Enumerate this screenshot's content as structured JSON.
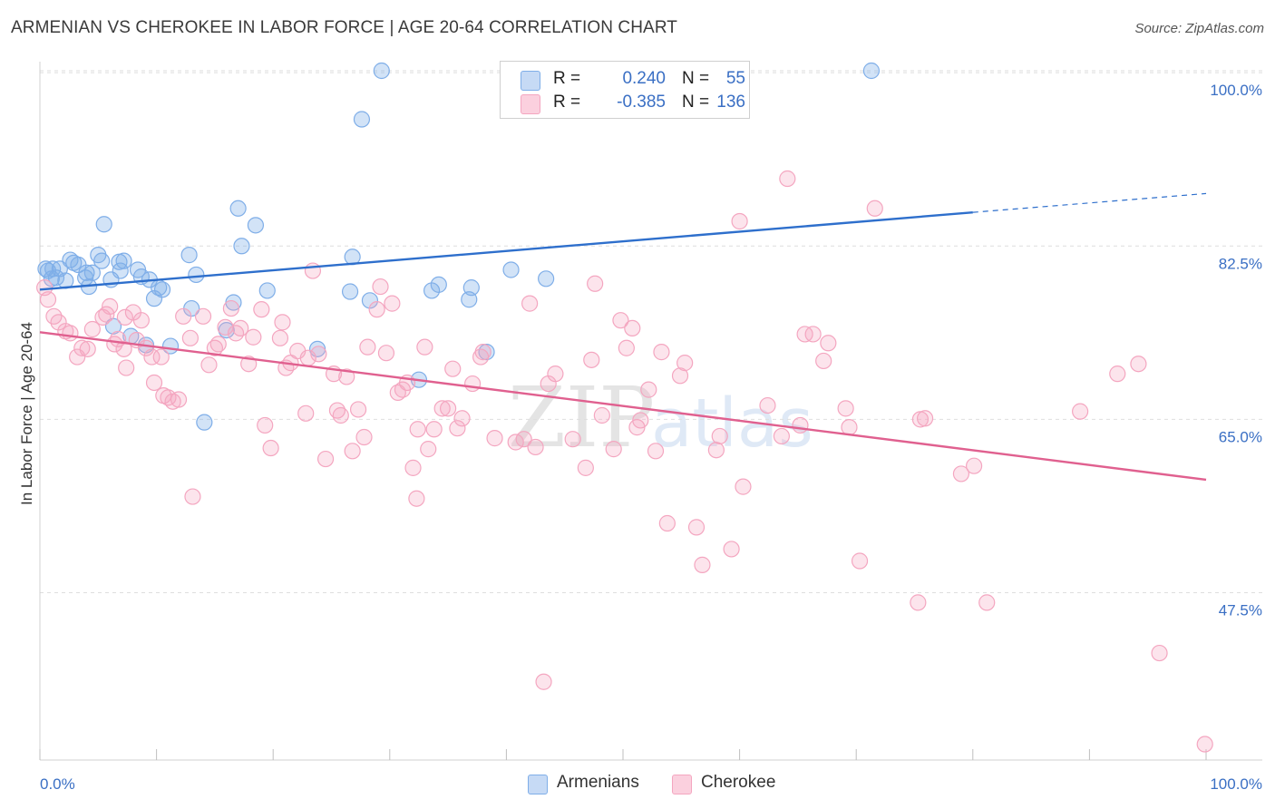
{
  "title": "ARMENIAN VS CHEROKEE IN LABOR FORCE | AGE 20-64 CORRELATION CHART",
  "source": "Source: ZipAtlas.com",
  "watermark": {
    "zip": "ZIP",
    "atlas": "atlas"
  },
  "legend_top": {
    "rows": [
      {
        "r_label": "R =",
        "r_value": "0.240",
        "n_label": "N =",
        "n_value": "55"
      },
      {
        "r_label": "R =",
        "r_value": "-0.385",
        "n_label": "N =",
        "n_value": "136"
      }
    ]
  },
  "chart_data": {
    "type": "scatter",
    "title": "ARMENIAN VS CHEROKEE IN LABOR FORCE | AGE 20-64 CORRELATION CHART",
    "xlabel": "",
    "ylabel": "In Labor Force | Age 20-64",
    "xlim": [
      0,
      100
    ],
    "ylim": [
      27.5,
      102.5
    ],
    "x_tick_labels": [
      "0.0%",
      "100.0%"
    ],
    "y_ticks": [
      47.5,
      65.0,
      82.5,
      100.0
    ],
    "y_tick_labels": [
      "47.5%",
      "65.0%",
      "82.5%",
      "100.0%"
    ],
    "grid": true,
    "legend_position": "bottom",
    "series": [
      {
        "name": "Armenians",
        "color": "#7faee8",
        "line_color": "#2e6fcc",
        "trend": {
          "x0": 0,
          "y0": 78.1,
          "x1": 80,
          "y1": 85.9,
          "dash_to_x": 100,
          "dash_to_y": 87.8
        },
        "points": [
          [
            0.5,
            80.2
          ],
          [
            0.7,
            80.0
          ],
          [
            1.0,
            79.2
          ],
          [
            1.1,
            80.2
          ],
          [
            1.4,
            79.3
          ],
          [
            1.7,
            80.2
          ],
          [
            2.2,
            79.0
          ],
          [
            2.6,
            81.1
          ],
          [
            2.9,
            80.8
          ],
          [
            3.3,
            80.6
          ],
          [
            3.9,
            79.3
          ],
          [
            4.0,
            79.8
          ],
          [
            4.2,
            78.4
          ],
          [
            4.5,
            79.8
          ],
          [
            5.0,
            81.6
          ],
          [
            5.3,
            81.0
          ],
          [
            5.5,
            84.7
          ],
          [
            6.1,
            79.1
          ],
          [
            6.3,
            74.4
          ],
          [
            6.8,
            80.9
          ],
          [
            6.9,
            80.0
          ],
          [
            7.2,
            81.0
          ],
          [
            7.8,
            73.4
          ],
          [
            8.4,
            80.1
          ],
          [
            8.7,
            79.4
          ],
          [
            9.1,
            72.5
          ],
          [
            9.4,
            79.1
          ],
          [
            9.8,
            77.2
          ],
          [
            10.2,
            78.3
          ],
          [
            10.5,
            78.1
          ],
          [
            11.2,
            72.4
          ],
          [
            12.8,
            81.6
          ],
          [
            13.0,
            76.2
          ],
          [
            13.4,
            79.6
          ],
          [
            14.1,
            64.7
          ],
          [
            16.0,
            74.0
          ],
          [
            16.6,
            76.8
          ],
          [
            17.0,
            86.3
          ],
          [
            17.3,
            82.5
          ],
          [
            18.5,
            84.6
          ],
          [
            19.5,
            78.0
          ],
          [
            23.8,
            72.1
          ],
          [
            26.6,
            77.9
          ],
          [
            26.8,
            81.4
          ],
          [
            27.6,
            95.3
          ],
          [
            28.3,
            77.0
          ],
          [
            29.3,
            100.2
          ],
          [
            32.5,
            69.0
          ],
          [
            33.6,
            78.0
          ],
          [
            34.2,
            78.6
          ],
          [
            36.8,
            77.1
          ],
          [
            37.0,
            78.3
          ],
          [
            38.3,
            71.8
          ],
          [
            40.4,
            80.1
          ],
          [
            43.4,
            79.2
          ],
          [
            71.3,
            100.2
          ]
        ]
      },
      {
        "name": "Cherokee",
        "color": "#f4a6c0",
        "line_color": "#e0608f",
        "trend": {
          "x0": 0,
          "y0": 73.8,
          "x1": 100,
          "y1": 58.9
        },
        "points": [
          [
            0.4,
            78.3
          ],
          [
            0.7,
            77.1
          ],
          [
            1.2,
            75.4
          ],
          [
            1.6,
            74.8
          ],
          [
            2.2,
            73.9
          ],
          [
            2.6,
            73.7
          ],
          [
            3.2,
            71.3
          ],
          [
            3.6,
            72.2
          ],
          [
            4.1,
            72.1
          ],
          [
            4.5,
            74.1
          ],
          [
            5.4,
            75.3
          ],
          [
            5.7,
            75.6
          ],
          [
            6.0,
            76.4
          ],
          [
            6.4,
            72.6
          ],
          [
            6.7,
            73.1
          ],
          [
            7.2,
            72.1
          ],
          [
            7.3,
            75.3
          ],
          [
            7.4,
            70.2
          ],
          [
            8.0,
            75.8
          ],
          [
            8.3,
            73.0
          ],
          [
            8.7,
            75.0
          ],
          [
            9.1,
            72.2
          ],
          [
            9.6,
            71.3
          ],
          [
            9.8,
            68.7
          ],
          [
            10.4,
            71.3
          ],
          [
            10.6,
            67.4
          ],
          [
            11.0,
            67.2
          ],
          [
            11.4,
            66.8
          ],
          [
            11.9,
            67.0
          ],
          [
            12.3,
            75.4
          ],
          [
            12.9,
            73.2
          ],
          [
            13.1,
            57.2
          ],
          [
            14.0,
            75.4
          ],
          [
            14.5,
            70.5
          ],
          [
            15.0,
            72.2
          ],
          [
            15.3,
            72.6
          ],
          [
            15.9,
            74.3
          ],
          [
            16.4,
            76.2
          ],
          [
            16.8,
            73.7
          ],
          [
            17.2,
            74.2
          ],
          [
            17.9,
            70.6
          ],
          [
            18.3,
            73.3
          ],
          [
            19.0,
            76.1
          ],
          [
            19.3,
            64.4
          ],
          [
            19.8,
            62.1
          ],
          [
            20.6,
            73.2
          ],
          [
            20.8,
            74.8
          ],
          [
            21.1,
            70.2
          ],
          [
            21.5,
            70.7
          ],
          [
            22.1,
            71.9
          ],
          [
            22.8,
            65.6
          ],
          [
            23.0,
            71.2
          ],
          [
            23.4,
            80.0
          ],
          [
            23.9,
            71.6
          ],
          [
            24.5,
            61.0
          ],
          [
            25.2,
            69.6
          ],
          [
            25.5,
            65.9
          ],
          [
            25.8,
            65.4
          ],
          [
            26.3,
            69.3
          ],
          [
            26.8,
            61.8
          ],
          [
            27.3,
            66.0
          ],
          [
            27.8,
            63.2
          ],
          [
            28.1,
            72.3
          ],
          [
            28.9,
            76.1
          ],
          [
            29.2,
            78.4
          ],
          [
            29.7,
            71.7
          ],
          [
            30.2,
            76.7
          ],
          [
            30.7,
            67.7
          ],
          [
            31.1,
            68.0
          ],
          [
            31.5,
            68.7
          ],
          [
            32.0,
            60.1
          ],
          [
            32.3,
            57.0
          ],
          [
            32.4,
            64.0
          ],
          [
            33.0,
            72.3
          ],
          [
            33.3,
            62.0
          ],
          [
            33.8,
            64.0
          ],
          [
            34.5,
            66.1
          ],
          [
            35.0,
            66.1
          ],
          [
            35.4,
            70.1
          ],
          [
            35.8,
            64.1
          ],
          [
            36.2,
            65.1
          ],
          [
            37.1,
            68.6
          ],
          [
            37.8,
            71.3
          ],
          [
            38.0,
            71.8
          ],
          [
            39.0,
            63.1
          ],
          [
            40.8,
            62.7
          ],
          [
            41.5,
            63.0
          ],
          [
            42.0,
            76.7
          ],
          [
            42.5,
            62.2
          ],
          [
            43.2,
            38.5
          ],
          [
            43.6,
            68.6
          ],
          [
            44.2,
            69.6
          ],
          [
            45.7,
            63.0
          ],
          [
            46.8,
            60.1
          ],
          [
            47.3,
            71.0
          ],
          [
            47.6,
            78.7
          ],
          [
            48.2,
            65.4
          ],
          [
            49.2,
            62.0
          ],
          [
            49.8,
            75.0
          ],
          [
            50.3,
            72.2
          ],
          [
            50.8,
            74.2
          ],
          [
            51.2,
            64.2
          ],
          [
            51.5,
            64.9
          ],
          [
            52.2,
            68.0
          ],
          [
            52.8,
            61.8
          ],
          [
            53.3,
            71.8
          ],
          [
            53.8,
            54.5
          ],
          [
            54.9,
            69.4
          ],
          [
            55.3,
            70.7
          ],
          [
            56.3,
            54.1
          ],
          [
            56.8,
            50.3
          ],
          [
            58.0,
            61.9
          ],
          [
            58.3,
            63.3
          ],
          [
            59.3,
            51.9
          ],
          [
            60.0,
            85.0
          ],
          [
            60.3,
            58.2
          ],
          [
            62.4,
            66.4
          ],
          [
            63.6,
            63.3
          ],
          [
            64.1,
            89.3
          ],
          [
            65.2,
            64.4
          ],
          [
            65.6,
            73.6
          ],
          [
            66.3,
            73.6
          ],
          [
            67.2,
            70.9
          ],
          [
            67.6,
            72.7
          ],
          [
            69.1,
            66.1
          ],
          [
            69.4,
            64.2
          ],
          [
            70.3,
            50.7
          ],
          [
            71.6,
            86.3
          ],
          [
            75.3,
            46.5
          ],
          [
            75.5,
            65.0
          ],
          [
            75.9,
            65.1
          ],
          [
            79.0,
            59.5
          ],
          [
            80.1,
            60.3
          ],
          [
            81.2,
            46.5
          ],
          [
            89.2,
            65.8
          ],
          [
            92.4,
            69.6
          ],
          [
            94.2,
            70.6
          ],
          [
            96.0,
            41.4
          ],
          [
            99.9,
            32.2
          ]
        ]
      }
    ]
  }
}
